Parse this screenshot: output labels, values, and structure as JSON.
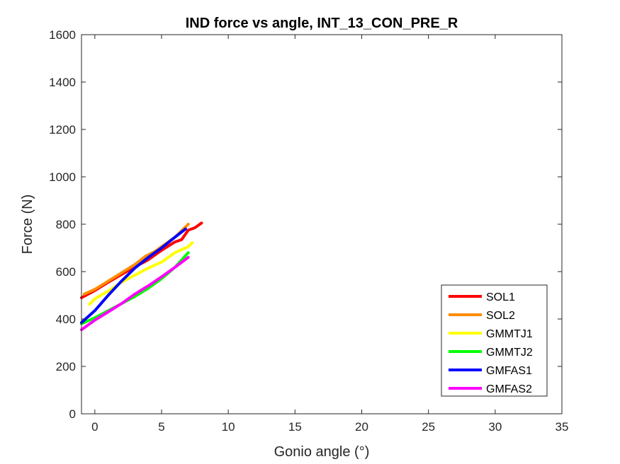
{
  "chart_data": {
    "type": "line",
    "title": "IND force vs angle, INT_13_CON_PRE_R",
    "xlabel": "Gonio angle (°)",
    "ylabel": "Force (N)",
    "xlim": [
      -1,
      35
    ],
    "ylim": [
      0,
      1600
    ],
    "xticks": [
      0,
      5,
      10,
      15,
      20,
      25,
      30,
      35
    ],
    "yticks": [
      0,
      200,
      400,
      600,
      800,
      1000,
      1200,
      1400,
      1600
    ],
    "grid": false,
    "legend_position": "bottom-right",
    "series": [
      {
        "name": "SOL1",
        "color": "#ff0000",
        "x": [
          -1,
          0,
          1,
          2,
          3,
          4,
          5,
          6,
          6.5,
          7,
          7.5,
          8
        ],
        "y": [
          490,
          520,
          555,
          588,
          620,
          650,
          690,
          725,
          735,
          775,
          785,
          805
        ]
      },
      {
        "name": "SOL2",
        "color": "#ff8c00",
        "x": [
          -0.8,
          0,
          1,
          2,
          3,
          3.8,
          4.5,
          5,
          6,
          7
        ],
        "y": [
          505,
          525,
          560,
          595,
          630,
          665,
          685,
          705,
          745,
          800
        ]
      },
      {
        "name": "GMMTJ1",
        "color": "#ffff00",
        "x": [
          -0.4,
          0,
          1,
          2,
          3,
          4,
          5,
          6,
          7,
          7.3
        ],
        "y": [
          462,
          485,
          518,
          555,
          585,
          615,
          640,
          680,
          705,
          722
        ]
      },
      {
        "name": "GMMTJ2",
        "color": "#00ff00",
        "x": [
          -1,
          0,
          1,
          2,
          3,
          4,
          5,
          6,
          7
        ],
        "y": [
          380,
          405,
          435,
          465,
          495,
          530,
          570,
          618,
          680
        ]
      },
      {
        "name": "GMFAS1",
        "color": "#0000ff",
        "x": [
          -1,
          0,
          1,
          2,
          3,
          4,
          5,
          6,
          6.8
        ],
        "y": [
          385,
          435,
          500,
          560,
          615,
          660,
          700,
          745,
          780
        ]
      },
      {
        "name": "GMFAS2",
        "color": "#ff00ff",
        "x": [
          -1,
          0,
          1,
          2,
          3,
          4,
          5,
          6,
          7
        ],
        "y": [
          355,
          395,
          430,
          465,
          505,
          540,
          578,
          618,
          660
        ]
      }
    ]
  }
}
